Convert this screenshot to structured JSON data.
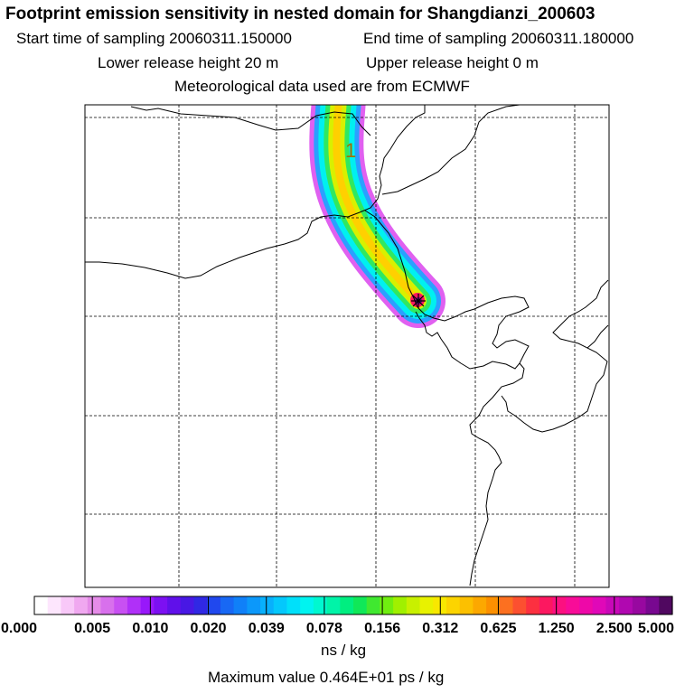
{
  "header": {
    "title": "Footprint emission sensitivity in nested domain for Shangdianzi_200603",
    "start_label": "Start time of sampling 20060311.150000",
    "end_label": "End time of sampling 20060311.180000",
    "lower_release": "Lower release height   20 m",
    "upper_release": "Upper release height    0 m",
    "met_data": "Meteorological data used are from ECMWF"
  },
  "map": {
    "plume_label": "1",
    "receptor_marker": "receptor-star"
  },
  "colorbar": {
    "tick_labels": [
      "0.000",
      "0.005",
      "0.010",
      "0.020",
      "0.039",
      "0.078",
      "0.156",
      "0.312",
      "0.625",
      "1.250",
      "2.500",
      "5.000"
    ],
    "colors": [
      "#ffffff",
      "#fde6fd",
      "#f8c8f8",
      "#f0a8f0",
      "#e58ce8",
      "#d870ec",
      "#c850f2",
      "#b030f8",
      "#9818fa",
      "#7c10f2",
      "#6010ea",
      "#4818e4",
      "#3028e4",
      "#2048ee",
      "#1868f4",
      "#1080f8",
      "#0c98fa",
      "#08b0fc",
      "#04c8fc",
      "#00e0fa",
      "#00f4f0",
      "#00f8d0",
      "#00f4a8",
      "#00ee80",
      "#10e858",
      "#40e830",
      "#70ee10",
      "#a0f000",
      "#c8f000",
      "#e8f200",
      "#f8e800",
      "#fcd400",
      "#fcc000",
      "#fca800",
      "#fc9000",
      "#fc7020",
      "#fc5030",
      "#fc3040",
      "#fc1860",
      "#fc1080",
      "#f80c98",
      "#ee08a8",
      "#e008b8",
      "#c808b8",
      "#b008b0",
      "#9808a0",
      "#780890",
      "#500860"
    ],
    "units": "ns / kg",
    "max_value_text": "Maximum value  0.464E+01 ps / kg"
  }
}
